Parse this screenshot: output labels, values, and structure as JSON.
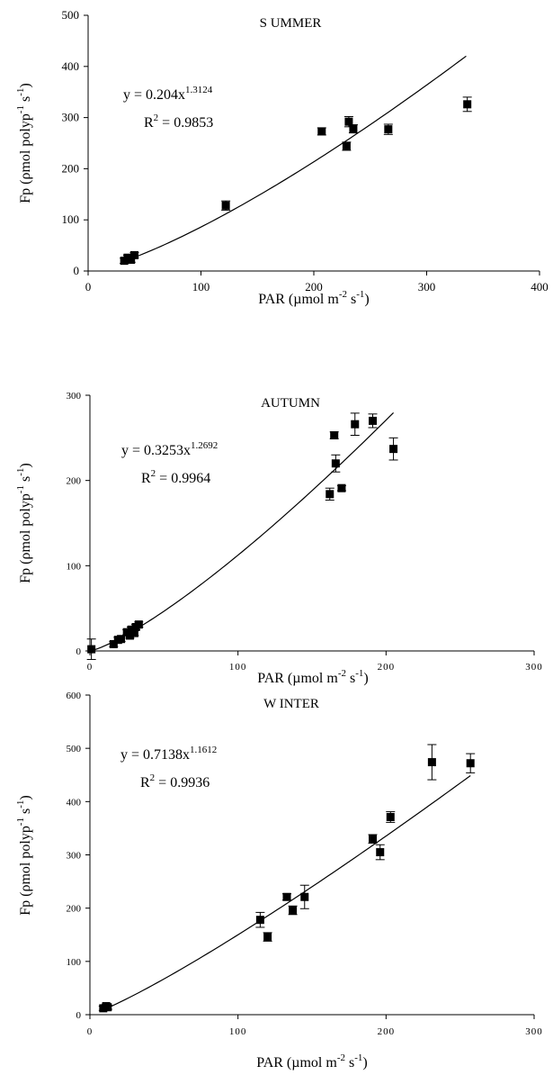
{
  "chart_data": [
    {
      "type": "scatter",
      "title": "S UMMER",
      "xlabel": "PAR (µmol m",
      "xlabel_sup1": "-2",
      "xlabel_mid": " s",
      "xlabel_sup2": "-1",
      "xlabel_end": ")",
      "ylabel": "Fp (ρmol polyp",
      "ylabel_sup1": "-1",
      "ylabel_mid": " s",
      "ylabel_sup2": "-1",
      "ylabel_end": ")",
      "xlim": [
        0,
        400
      ],
      "ylim": [
        0,
        500
      ],
      "xticks": [
        0,
        100,
        200,
        300,
        400
      ],
      "yticks": [
        0,
        100,
        200,
        300,
        400,
        500
      ],
      "equation": {
        "prefix": "y = 0.204x",
        "exponent": "1.3124"
      },
      "r2": {
        "prefix": "R",
        "sup": "2",
        "value": " = 0.9853"
      },
      "fit": {
        "a": 0.204,
        "b": 1.3124,
        "xrange": [
          30,
          335
        ]
      },
      "points": [
        {
          "x": 32,
          "y": 20,
          "err": 5
        },
        {
          "x": 35,
          "y": 26,
          "err": 5
        },
        {
          "x": 38,
          "y": 22,
          "err": 5
        },
        {
          "x": 41,
          "y": 31,
          "err": 5
        },
        {
          "x": 122,
          "y": 128,
          "err": 9
        },
        {
          "x": 207,
          "y": 273,
          "err": 7
        },
        {
          "x": 229,
          "y": 244,
          "err": 8
        },
        {
          "x": 231,
          "y": 292,
          "err": 10
        },
        {
          "x": 235,
          "y": 278,
          "err": 8
        },
        {
          "x": 266,
          "y": 277,
          "err": 10
        },
        {
          "x": 336,
          "y": 326,
          "err": 14
        }
      ]
    },
    {
      "type": "scatter",
      "title": "AUTUMN",
      "xlabel": "PAR (µmol m",
      "xlabel_sup1": "-2",
      "xlabel_mid": " s",
      "xlabel_sup2": "-1",
      "xlabel_end": ")",
      "ylabel": "Fp (ρmol polyp",
      "ylabel_sup1": "-1",
      "ylabel_mid": " s",
      "ylabel_sup2": "-1",
      "ylabel_end": ")",
      "xlim": [
        0,
        300
      ],
      "ylim": [
        0,
        300
      ],
      "xticks": [
        0,
        100,
        200,
        300
      ],
      "yticks": [
        0,
        100,
        200,
        300
      ],
      "equation": {
        "prefix": "y = 0.3253x",
        "exponent": "1.2692"
      },
      "r2": {
        "prefix": "R",
        "sup": "2",
        "value": " = 0.9964"
      },
      "fit": {
        "a": 0.3253,
        "b": 1.2692,
        "xrange": [
          0,
          205
        ]
      },
      "points": [
        {
          "x": 1,
          "y": 2,
          "err": 12
        },
        {
          "x": 16,
          "y": 8,
          "err": 3
        },
        {
          "x": 19,
          "y": 13,
          "err": 3
        },
        {
          "x": 21,
          "y": 14,
          "err": 3
        },
        {
          "x": 25,
          "y": 22,
          "err": 3
        },
        {
          "x": 27,
          "y": 18,
          "err": 3
        },
        {
          "x": 28,
          "y": 25,
          "err": 3
        },
        {
          "x": 30,
          "y": 21,
          "err": 3
        },
        {
          "x": 31,
          "y": 28,
          "err": 3
        },
        {
          "x": 33,
          "y": 31,
          "err": 3
        },
        {
          "x": 162,
          "y": 184,
          "err": 7
        },
        {
          "x": 165,
          "y": 253,
          "err": 4
        },
        {
          "x": 166,
          "y": 220,
          "err": 10
        },
        {
          "x": 170,
          "y": 191,
          "err": 3
        },
        {
          "x": 179,
          "y": 266,
          "err": 13
        },
        {
          "x": 191,
          "y": 270,
          "err": 8
        },
        {
          "x": 205,
          "y": 237,
          "err": 13
        }
      ]
    },
    {
      "type": "scatter",
      "title": "W INTER",
      "xlabel": "PAR (µmol m",
      "xlabel_sup1": "-2",
      "xlabel_mid": " s",
      "xlabel_sup2": "-1",
      "xlabel_end": ")",
      "ylabel": "Fp (ρmol polyp",
      "ylabel_sup1": "-1",
      "ylabel_mid": " s",
      "ylabel_sup2": "-1",
      "ylabel_end": ")",
      "xlim": [
        0,
        300
      ],
      "ylim": [
        0,
        600
      ],
      "xticks": [
        0,
        100,
        200,
        300
      ],
      "yticks": [
        0,
        100,
        200,
        300,
        400,
        500,
        600
      ],
      "equation": {
        "prefix": "y = 0.7138x",
        "exponent": "1.1612"
      },
      "r2": {
        "prefix": "R",
        "sup": "2",
        "value": " = 0.9936"
      },
      "fit": {
        "a": 0.7138,
        "b": 1.1612,
        "xrange": [
          8,
          257
        ]
      },
      "points": [
        {
          "x": 9,
          "y": 12,
          "err": 4
        },
        {
          "x": 11,
          "y": 16,
          "err": 4
        },
        {
          "x": 12,
          "y": 14,
          "err": 4
        },
        {
          "x": 115,
          "y": 178,
          "err": 14
        },
        {
          "x": 120,
          "y": 146,
          "err": 8
        },
        {
          "x": 133,
          "y": 221,
          "err": 6
        },
        {
          "x": 137,
          "y": 196,
          "err": 8
        },
        {
          "x": 145,
          "y": 221,
          "err": 22
        },
        {
          "x": 191,
          "y": 330,
          "err": 8
        },
        {
          "x": 196,
          "y": 305,
          "err": 14
        },
        {
          "x": 203,
          "y": 371,
          "err": 10
        },
        {
          "x": 231,
          "y": 474,
          "err": 33
        },
        {
          "x": 257,
          "y": 472,
          "err": 18
        }
      ]
    }
  ]
}
